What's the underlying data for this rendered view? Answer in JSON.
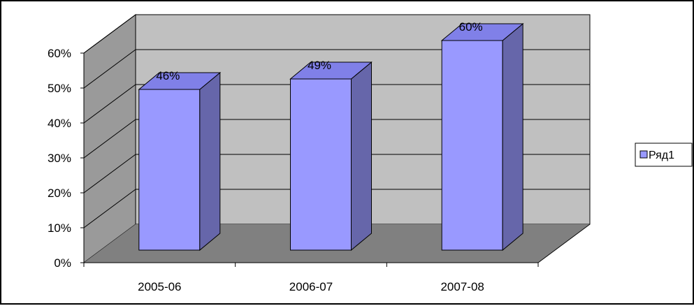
{
  "chart_data": {
    "type": "bar",
    "categories": [
      "2005-06",
      "2006-07",
      "2007-08"
    ],
    "series": [
      {
        "name": "Ряд1",
        "values": [
          0.46,
          0.49,
          0.6
        ]
      }
    ],
    "data_labels": [
      "46%",
      "49%",
      "60%"
    ],
    "y_ticks": [
      "0%",
      "10%",
      "20%",
      "30%",
      "40%",
      "50%",
      "60%"
    ],
    "ylim": [
      0,
      0.6
    ],
    "grid": true,
    "three_d": true,
    "legend_position": "right",
    "colors": {
      "bar_front": "#9999ff",
      "bar_side": "#6666aa",
      "bar_top": "#8080e8",
      "back_wall": "#c0c0c0",
      "side_wall": "#9a9a9a",
      "floor": "#808080"
    }
  }
}
